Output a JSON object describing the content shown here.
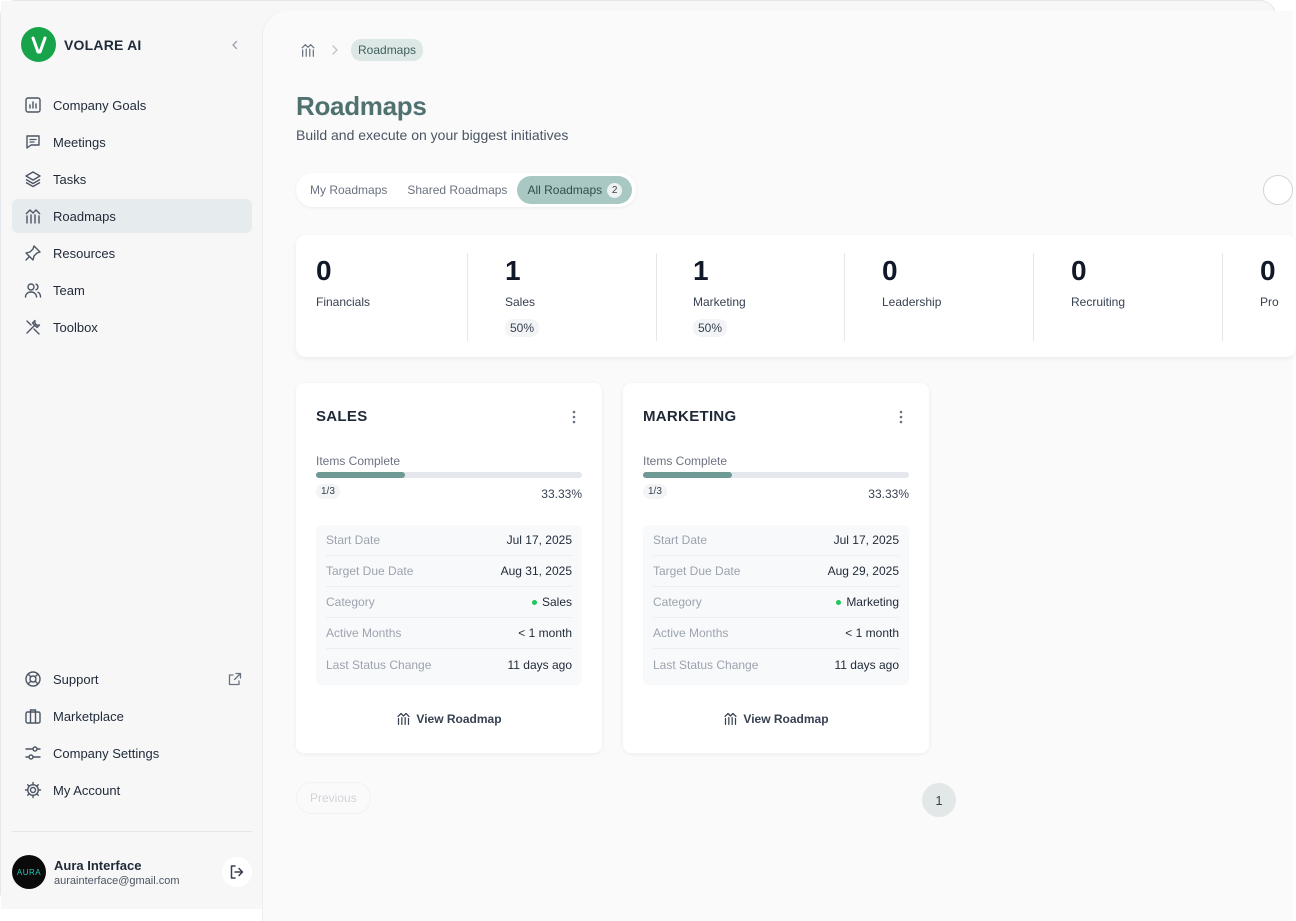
{
  "brand": {
    "name": "VOLARE AI"
  },
  "sidebar": {
    "items": [
      {
        "label": "Company Goals",
        "icon": "chart-icon"
      },
      {
        "label": "Meetings",
        "icon": "chat-icon"
      },
      {
        "label": "Tasks",
        "icon": "layers-icon"
      },
      {
        "label": "Roadmaps",
        "icon": "roadmap-icon",
        "active": true
      },
      {
        "label": "Resources",
        "icon": "pin-icon"
      },
      {
        "label": "Team",
        "icon": "users-icon"
      },
      {
        "label": "Toolbox",
        "icon": "tools-icon"
      }
    ],
    "bottom_items": [
      {
        "label": "Support",
        "icon": "lifebuoy-icon",
        "external": true
      },
      {
        "label": "Marketplace",
        "icon": "briefcase-icon"
      },
      {
        "label": "Company Settings",
        "icon": "sliders-icon"
      },
      {
        "label": "My Account",
        "icon": "gear-icon"
      }
    ],
    "user": {
      "name": "Aura Interface",
      "email": "aurainterface@gmail.com",
      "avatar_text": "AURA"
    }
  },
  "breadcrumb": {
    "current": "Roadmaps"
  },
  "page": {
    "title": "Roadmaps",
    "subtitle": "Build and execute on your biggest initiatives"
  },
  "tabs": [
    {
      "label": "My Roadmaps"
    },
    {
      "label": "Shared Roadmaps"
    },
    {
      "label": "All Roadmaps",
      "badge": "2",
      "active": true
    }
  ],
  "stats": [
    {
      "count": "0",
      "label": "Financials",
      "pct": ""
    },
    {
      "count": "1",
      "label": "Sales",
      "pct": "50%"
    },
    {
      "count": "1",
      "label": "Marketing",
      "pct": "50%"
    },
    {
      "count": "0",
      "label": "Leadership",
      "pct": ""
    },
    {
      "count": "0",
      "label": "Recruiting",
      "pct": ""
    },
    {
      "count": "0",
      "label": "Pro",
      "pct": ""
    }
  ],
  "cards": [
    {
      "title": "SALES",
      "progress_label": "Items Complete",
      "progress_count": "1/3",
      "progress_pct": "33.33%",
      "progress_value": 0.3333,
      "details": {
        "start_label": "Start Date",
        "start": "Jul 17, 2025",
        "due_label": "Target Due Date",
        "due": "Aug 31, 2025",
        "category_label": "Category",
        "category": "Sales",
        "months_label": "Active Months",
        "months": "< 1 month",
        "status_label": "Last Status Change",
        "status": "11 days ago"
      },
      "link": "View Roadmap"
    },
    {
      "title": "MARKETING",
      "progress_label": "Items Complete",
      "progress_count": "1/3",
      "progress_pct": "33.33%",
      "progress_value": 0.3333,
      "details": {
        "start_label": "Start Date",
        "start": "Jul 17, 2025",
        "due_label": "Target Due Date",
        "due": "Aug 29, 2025",
        "category_label": "Category",
        "category": "Marketing",
        "months_label": "Active Months",
        "months": "< 1 month",
        "status_label": "Last Status Change",
        "status": "11 days ago"
      },
      "link": "View Roadmap"
    }
  ],
  "pagination": {
    "previous": "Previous",
    "page": "1"
  },
  "colors": {
    "accent": "#4f7270",
    "brand_green": "#16a34a",
    "active_tab": "#a9c7c3",
    "category_dot": "#22c55e"
  }
}
